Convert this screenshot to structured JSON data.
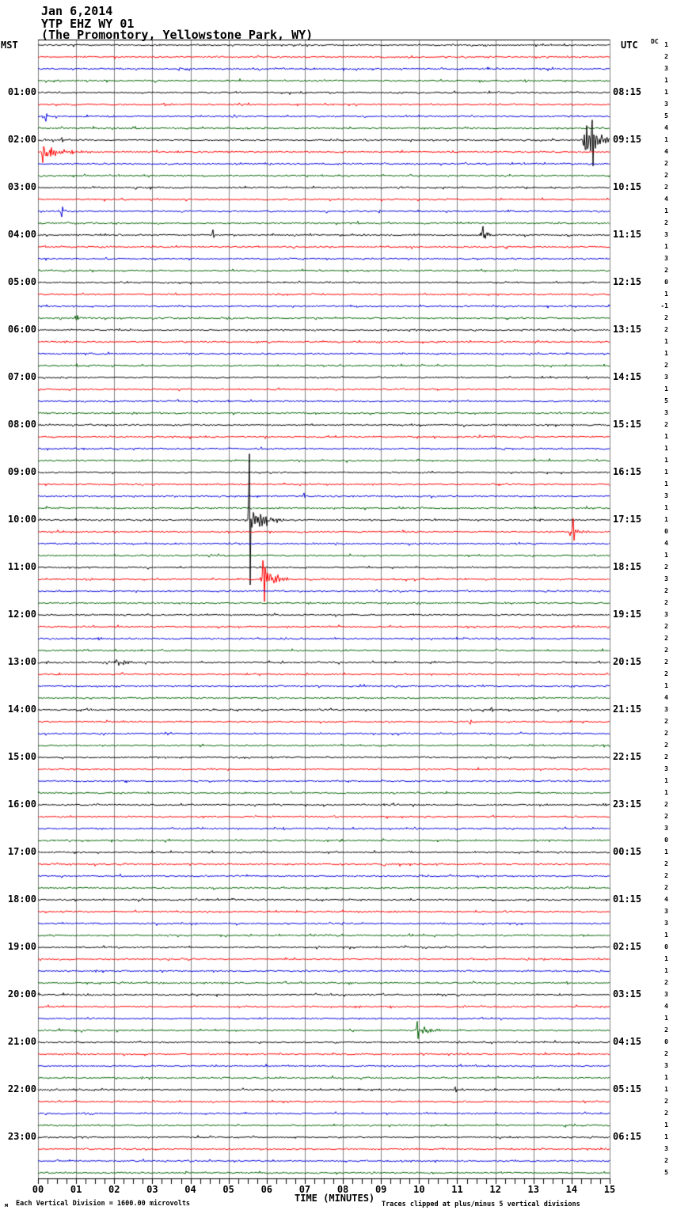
{
  "header": {
    "date": "Jan 6,2014",
    "station": "YTP EHZ WY 01",
    "location": "(The Promontory, Yellowstone Park, WY)"
  },
  "axes": {
    "left_label": "MST",
    "right_label": "UTC",
    "dc_label": "DC",
    "x_axis_title": "TIME (MINUTES)",
    "left_times": [
      "01:00",
      "02:00",
      "03:00",
      "04:00",
      "05:00",
      "06:00",
      "07:00",
      "08:00",
      "09:00",
      "10:00",
      "11:00",
      "12:00",
      "13:00",
      "14:00",
      "15:00",
      "16:00",
      "17:00",
      "18:00",
      "19:00",
      "20:00",
      "21:00",
      "22:00",
      "23:00"
    ],
    "right_times": [
      "08:15",
      "09:15",
      "10:15",
      "11:15",
      "12:15",
      "13:15",
      "14:15",
      "15:15",
      "16:15",
      "17:15",
      "18:15",
      "19:15",
      "20:15",
      "21:15",
      "22:15",
      "23:15",
      "00:15",
      "01:15",
      "02:15",
      "03:15",
      "04:15",
      "05:15",
      "06:15"
    ],
    "x_ticks": [
      "00",
      "01",
      "02",
      "03",
      "04",
      "05",
      "06",
      "07",
      "08",
      "09",
      "10",
      "11",
      "12",
      "13",
      "14",
      "15"
    ]
  },
  "footer": {
    "left_note": "Each Vertical Division = 1600.00 microvolts",
    "right_note": "Traces clipped at plus/minus 5 vertical divisions",
    "watermark": "м"
  },
  "chart_data": {
    "type": "seismogram-helicorder",
    "title": "YTP EHZ WY 01 — Jan 6,2014 (The Promontory, Yellowstone Park, WY)",
    "xlabel": "TIME (MINUTES)",
    "x_range_minutes": [
      0,
      15
    ],
    "rows": 96,
    "minutes_per_row": 15,
    "first_row_start_mst": "00:00",
    "timezone_left": "MST",
    "timezone_right": "UTC",
    "grid": true,
    "colors_cycle": [
      "#000000",
      "#ff0000",
      "#0000dd",
      "#006400"
    ],
    "dc_offsets": [
      1,
      2,
      3,
      1,
      1,
      3,
      5,
      4,
      1,
      4,
      2,
      2,
      2,
      4,
      1,
      2,
      3,
      1,
      3,
      2,
      0,
      1,
      -1,
      2,
      2,
      1,
      1,
      2,
      3,
      1,
      5,
      3,
      2,
      1,
      1,
      1,
      1,
      1,
      3,
      1,
      1,
      0,
      4,
      1,
      2,
      3,
      2,
      2,
      3,
      2,
      2,
      2,
      2,
      2,
      1,
      4,
      3,
      2,
      2,
      2,
      2,
      3,
      1,
      1,
      2,
      2,
      3,
      0,
      1,
      2,
      2,
      2,
      4,
      3,
      3,
      1,
      0,
      1,
      1,
      2,
      3,
      4,
      1,
      2,
      0,
      2,
      3,
      1,
      1,
      2,
      2,
      1,
      1,
      3,
      2,
      5
    ],
    "events": [
      {
        "row": 6,
        "time_mst": "01:30",
        "kind": "spike",
        "min": 0.2,
        "amp": -6,
        "amp2": 3
      },
      {
        "row": 8,
        "time_mst": "02:00",
        "kind": "spike",
        "min": 0.62,
        "amp": 4,
        "amp2": -3
      },
      {
        "row": 8,
        "time_mst": "02:14",
        "kind": "burst",
        "min": 14.25,
        "dur": 1.0,
        "amp": 20
      },
      {
        "row": 8,
        "time_mst": "02:14",
        "kind": "spike",
        "min": 14.55,
        "amp": 26,
        "amp2": -22
      },
      {
        "row": 9,
        "time_mst": "02:15",
        "kind": "burst",
        "min": 0.08,
        "dur": 1.3,
        "amp": 8
      },
      {
        "row": 9,
        "time_mst": "02:15",
        "kind": "spike",
        "min": 0.12,
        "amp": -12,
        "amp2": 9
      },
      {
        "row": 14,
        "time_mst": "03:30",
        "kind": "spike",
        "min": 0.62,
        "amp": -7,
        "amp2": 5
      },
      {
        "row": 16,
        "time_mst": "04:04",
        "kind": "spike",
        "min": 4.6,
        "amp": 6,
        "amp2": -4
      },
      {
        "row": 16,
        "time_mst": "04:11",
        "kind": "burst",
        "min": 11.55,
        "dur": 0.55,
        "amp": 9
      },
      {
        "row": 16,
        "time_mst": "04:11",
        "kind": "spike",
        "min": 11.68,
        "amp": 12,
        "amp2": -8
      },
      {
        "row": 23,
        "time_mst": "05:46",
        "kind": "burst",
        "min": 0.95,
        "dur": 0.4,
        "amp": 4
      },
      {
        "row": 38,
        "time_mst": "09:37",
        "kind": "spike",
        "min": 6.98,
        "amp": 4,
        "amp2": -2
      },
      {
        "row": 40,
        "time_mst": "10:05",
        "kind": "spike",
        "min": 5.55,
        "amp": 85,
        "amp2": -78
      },
      {
        "row": 40,
        "time_mst": "10:05",
        "kind": "burst",
        "min": 5.5,
        "dur": 1.1,
        "amp": 13
      },
      {
        "row": 41,
        "time_mst": "10:29",
        "kind": "burst",
        "min": 13.9,
        "dur": 0.55,
        "amp": 9
      },
      {
        "row": 41,
        "time_mst": "10:29",
        "kind": "spike",
        "min": 14.05,
        "amp": 13,
        "amp2": -10
      },
      {
        "row": 45,
        "time_mst": "11:20",
        "kind": "burst",
        "min": 5.82,
        "dur": 0.8,
        "amp": 18
      },
      {
        "row": 45,
        "time_mst": "11:20",
        "kind": "spike",
        "min": 5.92,
        "amp": 24,
        "amp2": -26
      },
      {
        "row": 52,
        "time_mst": "13:02",
        "kind": "burst",
        "min": 2.0,
        "dur": 0.6,
        "amp": 7
      },
      {
        "row": 56,
        "time_mst": "14:11",
        "kind": "spike",
        "min": 11.9,
        "amp": 4,
        "amp2": -2
      },
      {
        "row": 57,
        "time_mst": "14:26",
        "kind": "spike",
        "min": 11.35,
        "amp": -4,
        "amp2": 2
      },
      {
        "row": 83,
        "time_mst": "20:55",
        "kind": "spike",
        "min": 9.95,
        "amp": 12,
        "amp2": -10
      },
      {
        "row": 83,
        "time_mst": "20:55",
        "kind": "burst",
        "min": 10.0,
        "dur": 0.8,
        "amp": 5
      },
      {
        "row": 88,
        "time_mst": "22:10",
        "kind": "spike",
        "min": 10.95,
        "amp": 4,
        "amp2": -3
      }
    ]
  }
}
